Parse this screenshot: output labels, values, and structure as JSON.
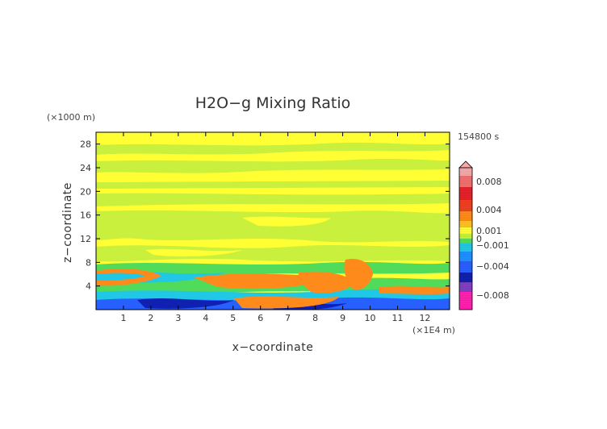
{
  "chart_data": {
    "type": "heatmap",
    "title": "H2O−g Mixing Ratio",
    "xlabel": "x−coordinate",
    "ylabel": "z−coordinate",
    "x_unit": "(×1E4 m)",
    "y_unit": "(×1000 m)",
    "time_label": "154800 s",
    "xlim": [
      0,
      12.9
    ],
    "ylim": [
      0,
      30
    ],
    "x_ticks": [
      "1",
      "2",
      "3",
      "4",
      "5",
      "6",
      "7",
      "8",
      "9",
      "10",
      "11",
      "12"
    ],
    "y_ticks": [
      "4",
      "8",
      "12",
      "16",
      "20",
      "24",
      "28"
    ],
    "colorbar": {
      "range": [
        -0.01,
        0.01
      ],
      "tick_labels": [
        "0.008",
        "0.004",
        "0.001",
        "0",
        "−0.001",
        "−0.004",
        "−0.008"
      ],
      "tick_values": [
        0.008,
        0.004,
        0.001,
        0,
        -0.001,
        -0.004,
        -0.008
      ],
      "colors": {
        "pink_high": "#f7a8a8",
        "red": "#e8202a",
        "orange": "#ff8a1c",
        "yellow": "#ffff33",
        "yellow_green": "#c8f03c",
        "green": "#50dc5a",
        "cyan": "#20c8e6",
        "blue": "#2860ff",
        "dark_blue": "#1020b0",
        "purple": "#8040c0",
        "magenta": "#ff20b0"
      }
    }
  }
}
